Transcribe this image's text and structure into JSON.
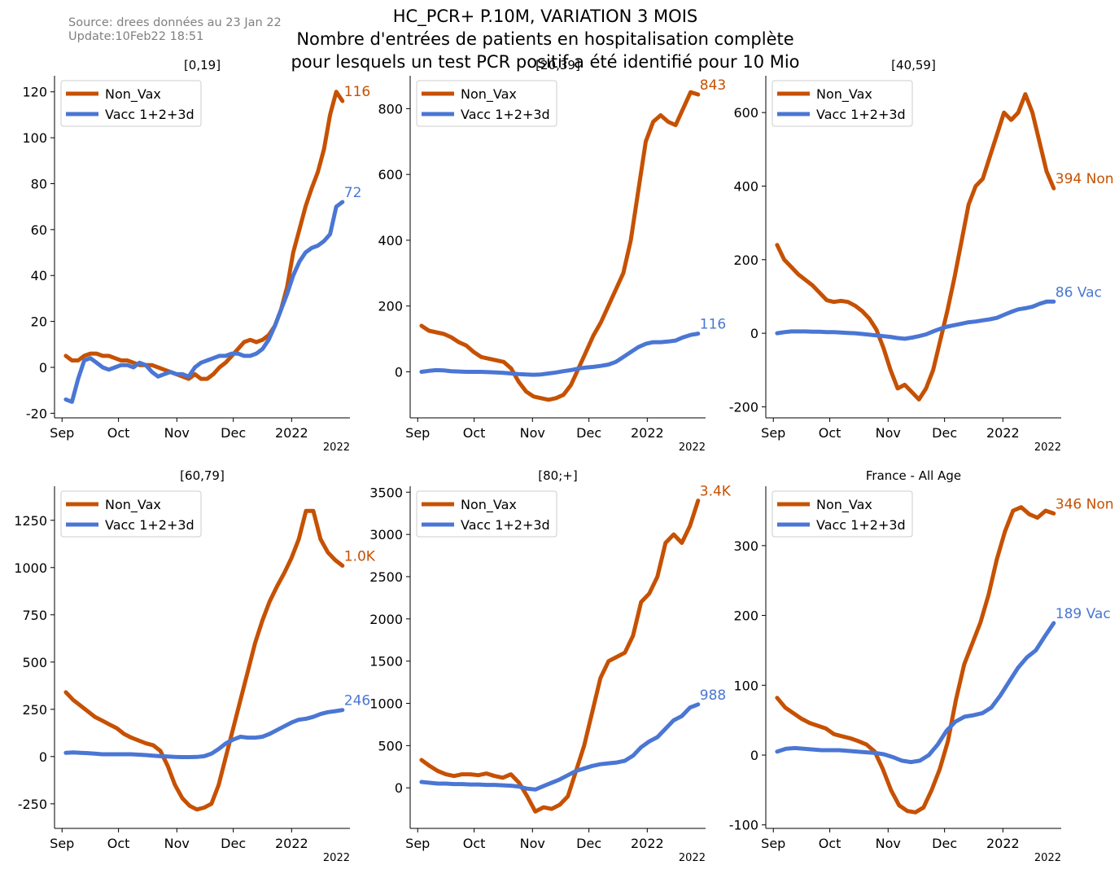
{
  "header": {
    "source_line1": "Source: drees données au 23 Jan 22",
    "source_line2": "Update:10Feb22 18:51",
    "title_line1": "HC_PCR+ P.10M, VARIATION 3 MOIS",
    "title_line2": "Nombre d'entrées de patients en hospitalisation complète",
    "title_line3": "pour lesquels un test PCR positif a été identifié pour 10 Mio"
  },
  "colors": {
    "non_vax": "#c65102",
    "vacc": "#4a76d4"
  },
  "chart_data": [
    {
      "type": "line",
      "title": "[0,19]",
      "x_start": "2021-09-03",
      "x_end": "2022-01-28",
      "xticks": [
        {
          "date": "2021-09-01",
          "label": "Sep"
        },
        {
          "date": "2021-10-01",
          "label": "Oct"
        },
        {
          "date": "2021-11-01",
          "label": "Nov"
        },
        {
          "date": "2021-12-01",
          "label": "Dec"
        },
        {
          "date": "2022-01-01",
          "label": "2022"
        }
      ],
      "x_offset_label": "2022",
      "yticks": [
        -20,
        0,
        20,
        40,
        60,
        80,
        100,
        120
      ],
      "ytick_labels": [
        "-20",
        "0",
        "20",
        "40",
        "60",
        "80",
        "100",
        "120"
      ],
      "ylim": [
        -22,
        127
      ],
      "legend": {
        "placement": "top-left",
        "entries": [
          "Non_Vax",
          "Vacc 1+2+3d"
        ]
      },
      "series": [
        {
          "name": "Non_Vax",
          "values": [
            5,
            3,
            3,
            5,
            6,
            6,
            5,
            5,
            4,
            3,
            3,
            2,
            1,
            1,
            1,
            0,
            -1,
            -2,
            -3,
            -4,
            -5,
            -3,
            -5,
            -5,
            -3,
            0,
            2,
            5,
            8,
            11,
            12,
            11,
            12,
            14,
            18,
            25,
            35,
            50,
            60,
            70,
            78,
            85,
            95,
            110,
            120,
            116
          ],
          "end_label": "116"
        },
        {
          "name": "Vacc 1+2+3d",
          "values": [
            -14,
            -15,
            -5,
            3,
            4,
            2,
            0,
            -1,
            0,
            1,
            1,
            0,
            2,
            1,
            -2,
            -4,
            -3,
            -2,
            -3,
            -3,
            -4,
            0,
            2,
            3,
            4,
            5,
            5,
            6,
            6,
            5,
            5,
            6,
            8,
            12,
            18,
            25,
            32,
            40,
            46,
            50,
            52,
            53,
            55,
            58,
            70,
            72
          ],
          "end_label": "72"
        }
      ]
    },
    {
      "type": "line",
      "title": "[20,39]",
      "x_start": "2021-09-03",
      "x_end": "2022-01-28",
      "xticks": [
        {
          "date": "2021-09-01",
          "label": "Sep"
        },
        {
          "date": "2021-10-01",
          "label": "Oct"
        },
        {
          "date": "2021-11-01",
          "label": "Nov"
        },
        {
          "date": "2021-12-01",
          "label": "Dec"
        },
        {
          "date": "2022-01-01",
          "label": "2022"
        }
      ],
      "x_offset_label": "2022",
      "yticks": [
        0,
        200,
        400,
        600,
        800
      ],
      "ytick_labels": [
        "0",
        "200",
        "400",
        "600",
        "800"
      ],
      "ylim": [
        -140,
        900
      ],
      "legend": {
        "placement": "top-left",
        "entries": [
          "Non_Vax",
          "Vacc 1+2+3d"
        ]
      },
      "series": [
        {
          "name": "Non_Vax",
          "values": [
            140,
            125,
            120,
            115,
            105,
            90,
            80,
            60,
            45,
            40,
            35,
            30,
            10,
            -30,
            -60,
            -75,
            -80,
            -85,
            -80,
            -70,
            -40,
            10,
            60,
            110,
            150,
            200,
            250,
            300,
            400,
            550,
            700,
            760,
            780,
            760,
            750,
            800,
            850,
            843
          ],
          "end_label": "843"
        },
        {
          "name": "Vacc 1+2+3d",
          "values": [
            0,
            3,
            5,
            4,
            2,
            1,
            0,
            0,
            0,
            -1,
            -2,
            -3,
            -5,
            -7,
            -8,
            -9,
            -8,
            -5,
            -2,
            2,
            5,
            10,
            13,
            15,
            18,
            22,
            30,
            45,
            60,
            75,
            85,
            90,
            90,
            92,
            95,
            105,
            112,
            116
          ],
          "end_label": "116"
        }
      ]
    },
    {
      "type": "line",
      "title": "[40,59]",
      "x_start": "2021-09-03",
      "x_end": "2022-01-28",
      "xticks": [
        {
          "date": "2021-09-01",
          "label": "Sep"
        },
        {
          "date": "2021-10-01",
          "label": "Oct"
        },
        {
          "date": "2021-11-01",
          "label": "Nov"
        },
        {
          "date": "2021-12-01",
          "label": "Dec"
        },
        {
          "date": "2022-01-01",
          "label": "2022"
        }
      ],
      "x_offset_label": "2022",
      "yticks": [
        -200,
        0,
        200,
        400,
        600
      ],
      "ytick_labels": [
        "-200",
        "0",
        "200",
        "400",
        "600"
      ],
      "ylim": [
        -230,
        700
      ],
      "legend": {
        "placement": "top-left",
        "entries": [
          "Non_Vax",
          "Vacc 1+2+3d"
        ]
      },
      "series": [
        {
          "name": "Non_Vax",
          "values": [
            240,
            200,
            180,
            160,
            145,
            130,
            110,
            90,
            85,
            88,
            85,
            75,
            60,
            40,
            10,
            -40,
            -100,
            -150,
            -140,
            -160,
            -180,
            -150,
            -100,
            -20,
            60,
            150,
            250,
            350,
            400,
            420,
            480,
            540,
            600,
            580,
            600,
            650,
            600,
            520,
            440,
            394
          ],
          "end_label": "394 Non"
        },
        {
          "name": "Vacc 1+2+3d",
          "values": [
            0,
            3,
            5,
            5,
            5,
            4,
            4,
            3,
            3,
            2,
            1,
            0,
            -2,
            -4,
            -6,
            -8,
            -10,
            -13,
            -15,
            -12,
            -8,
            -3,
            5,
            12,
            18,
            22,
            26,
            30,
            32,
            35,
            38,
            42,
            50,
            58,
            65,
            68,
            72,
            80,
            86,
            86
          ],
          "end_label": "86 Vac"
        }
      ]
    },
    {
      "type": "line",
      "title": "[60,79]",
      "x_start": "2021-09-03",
      "x_end": "2022-01-28",
      "xticks": [
        {
          "date": "2021-09-01",
          "label": "Sep"
        },
        {
          "date": "2021-10-01",
          "label": "Oct"
        },
        {
          "date": "2021-11-01",
          "label": "Nov"
        },
        {
          "date": "2021-12-01",
          "label": "Dec"
        },
        {
          "date": "2022-01-01",
          "label": "2022"
        }
      ],
      "x_offset_label": "2022",
      "yticks": [
        -250,
        0,
        250,
        500,
        750,
        1000,
        1250
      ],
      "ytick_labels": [
        "-250",
        "0",
        "250",
        "500",
        "750",
        "1000",
        "1250"
      ],
      "ylim": [
        -380,
        1430
      ],
      "legend": {
        "placement": "top-left",
        "entries": [
          "Non_Vax",
          "Vacc 1+2+3d"
        ]
      },
      "series": [
        {
          "name": "Non_Vax",
          "values": [
            340,
            300,
            270,
            240,
            210,
            190,
            170,
            150,
            120,
            100,
            85,
            70,
            60,
            30,
            -50,
            -150,
            -220,
            -260,
            -280,
            -270,
            -250,
            -150,
            0,
            150,
            300,
            450,
            600,
            720,
            820,
            900,
            970,
            1050,
            1150,
            1300,
            1300,
            1150,
            1080,
            1040,
            1010
          ],
          "end_label": "1.0K"
        },
        {
          "name": "Vacc 1+2+3d",
          "values": [
            20,
            22,
            20,
            18,
            15,
            12,
            12,
            12,
            12,
            12,
            10,
            8,
            5,
            2,
            0,
            -2,
            -3,
            -3,
            -2,
            2,
            15,
            40,
            70,
            90,
            105,
            100,
            100,
            105,
            120,
            140,
            160,
            180,
            195,
            200,
            210,
            225,
            235,
            240,
            246
          ],
          "end_label": "246"
        }
      ]
    },
    {
      "type": "line",
      "title": "[80;+]",
      "x_start": "2021-09-03",
      "x_end": "2022-01-28",
      "xticks": [
        {
          "date": "2021-09-01",
          "label": "Sep"
        },
        {
          "date": "2021-10-01",
          "label": "Oct"
        },
        {
          "date": "2021-11-01",
          "label": "Nov"
        },
        {
          "date": "2021-12-01",
          "label": "Dec"
        },
        {
          "date": "2022-01-01",
          "label": "2022"
        }
      ],
      "x_offset_label": "2022",
      "yticks": [
        0,
        500,
        1000,
        1500,
        2000,
        2500,
        3000,
        3500
      ],
      "ytick_labels": [
        "0",
        "500",
        "1000",
        "1500",
        "2000",
        "2500",
        "3000",
        "3500"
      ],
      "ylim": [
        -480,
        3570
      ],
      "legend": {
        "placement": "top-left",
        "entries": [
          "Non_Vax",
          "Vacc 1+2+3d"
        ]
      },
      "series": [
        {
          "name": "Non_Vax",
          "values": [
            330,
            260,
            200,
            160,
            140,
            160,
            160,
            150,
            170,
            140,
            120,
            160,
            60,
            -100,
            -280,
            -230,
            -250,
            -200,
            -100,
            200,
            500,
            900,
            1300,
            1500,
            1550,
            1600,
            1800,
            2200,
            2300,
            2500,
            2900,
            3000,
            2900,
            3100,
            3400
          ],
          "end_label": "3.4K"
        },
        {
          "name": "Vacc 1+2+3d",
          "values": [
            70,
            60,
            50,
            50,
            45,
            45,
            40,
            40,
            35,
            35,
            30,
            25,
            15,
            -10,
            -20,
            20,
            60,
            100,
            150,
            200,
            230,
            260,
            280,
            290,
            300,
            320,
            380,
            480,
            550,
            600,
            700,
            800,
            850,
            950,
            988
          ],
          "end_label": "988"
        }
      ]
    },
    {
      "type": "line",
      "title": "France - All Age",
      "x_start": "2021-09-03",
      "x_end": "2022-01-28",
      "xticks": [
        {
          "date": "2021-09-01",
          "label": "Sep"
        },
        {
          "date": "2021-10-01",
          "label": "Oct"
        },
        {
          "date": "2021-11-01",
          "label": "Nov"
        },
        {
          "date": "2021-12-01",
          "label": "Dec"
        },
        {
          "date": "2022-01-01",
          "label": "2022"
        }
      ],
      "x_offset_label": "2022",
      "yticks": [
        -100,
        0,
        100,
        200,
        300
      ],
      "ytick_labels": [
        "-100",
        "0",
        "100",
        "200",
        "300"
      ],
      "ylim": [
        -105,
        385
      ],
      "legend": {
        "placement": "top-left",
        "entries": [
          "Non_Vax",
          "Vacc 1+2+3d"
        ]
      },
      "series": [
        {
          "name": "Non_Vax",
          "values": [
            82,
            68,
            60,
            52,
            46,
            42,
            38,
            30,
            27,
            24,
            20,
            15,
            5,
            -20,
            -50,
            -72,
            -80,
            -82,
            -75,
            -50,
            -20,
            20,
            80,
            130,
            160,
            190,
            230,
            280,
            320,
            350,
            355,
            345,
            340,
            350,
            346
          ],
          "end_label": "346 Non"
        },
        {
          "name": "Vacc 1+2+3d",
          "values": [
            5,
            9,
            10,
            9,
            8,
            7,
            7,
            7,
            6,
            5,
            4,
            3,
            1,
            -3,
            -8,
            -10,
            -8,
            0,
            15,
            35,
            48,
            55,
            57,
            60,
            68,
            85,
            105,
            125,
            140,
            150,
            170,
            189
          ],
          "end_label": "189 Vac"
        }
      ]
    }
  ]
}
